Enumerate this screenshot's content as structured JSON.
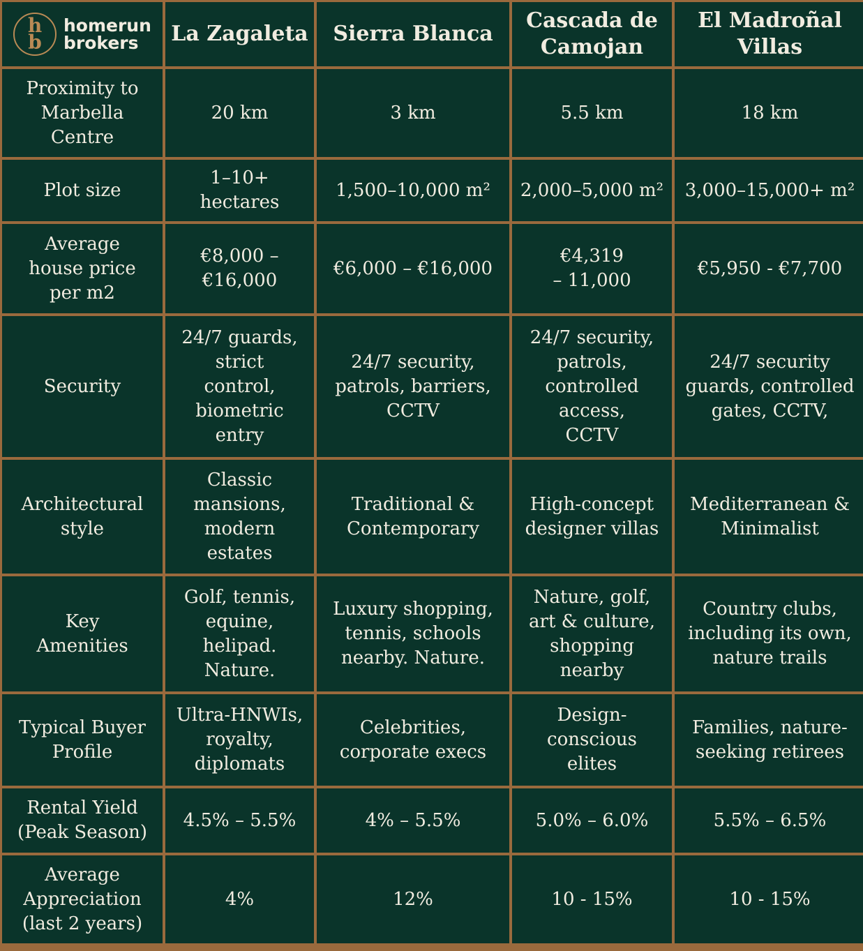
{
  "brand": {
    "logo_letters": [
      "h",
      "b"
    ],
    "name": "homerun\nbrokers"
  },
  "colors": {
    "background": "#0a342a",
    "border": "#9a6a3d",
    "text": "#f1ece0",
    "logo": "#b98a55"
  },
  "headers": [
    "La Zagaleta",
    "Sierra Blanca",
    "Cascada de\nCamojan",
    "El Madroñal\nVillas"
  ],
  "rows": [
    {
      "label": "Proximity to\nMarbella\nCentre",
      "values": [
        "20 km",
        "3 km",
        "5.5 km",
        "18 km"
      ]
    },
    {
      "label": "Plot size",
      "values": [
        "1–10+ hectares",
        "1,500–10,000 m²",
        "2,000–5,000 m²",
        "3,000–15,000+ m²"
      ]
    },
    {
      "label": "Average\nhouse price\nper m2",
      "values": [
        "€8,000 –\n€16,000",
        "€6,000 – €16,000",
        "€4,319\n– 11,000",
        "€5,950 - €7,700"
      ]
    },
    {
      "label": "Security",
      "values": [
        "24/7 guards,\nstrict\ncontrol,\nbiometric\nentry",
        "24/7 security,\npatrols, barriers,\nCCTV",
        "24/7 security,\npatrols,\ncontrolled\naccess,\nCCTV",
        "24/7 security\nguards, controlled\ngates, CCTV,"
      ]
    },
    {
      "label": "Architectural\nstyle",
      "values": [
        "Classic\nmansions,\nmodern\nestates",
        "Traditional &\nContemporary",
        "High-concept\ndesigner villas",
        "Mediterranean &\nMinimalist"
      ]
    },
    {
      "label": "Key\nAmenities",
      "values": [
        "Golf, tennis,\nequine,\nhelipad.\nNature.",
        "Luxury shopping,\ntennis, schools\nnearby. Nature.",
        "Nature, golf,\nart & culture,\nshopping\nnearby",
        "Country clubs,\nincluding its own,\nnature trails"
      ]
    },
    {
      "label": "Typical Buyer\nProfile",
      "values": [
        "Ultra-HNWIs,\nroyalty,\ndiplomats",
        "Celebrities,\ncorporate execs",
        "Design-\nconscious\nelites",
        "Families, nature-\nseeking retirees"
      ]
    },
    {
      "label": "Rental Yield\n(Peak Season)",
      "values": [
        "4.5% – 5.5%",
        "4% – 5.5%",
        "5.0% – 6.0%",
        "5.5% – 6.5%"
      ]
    },
    {
      "label": "Average\nAppreciation\n(last 2 years)",
      "values": [
        "4%",
        "12%",
        "10 - 15%",
        "10 - 15%"
      ]
    }
  ]
}
